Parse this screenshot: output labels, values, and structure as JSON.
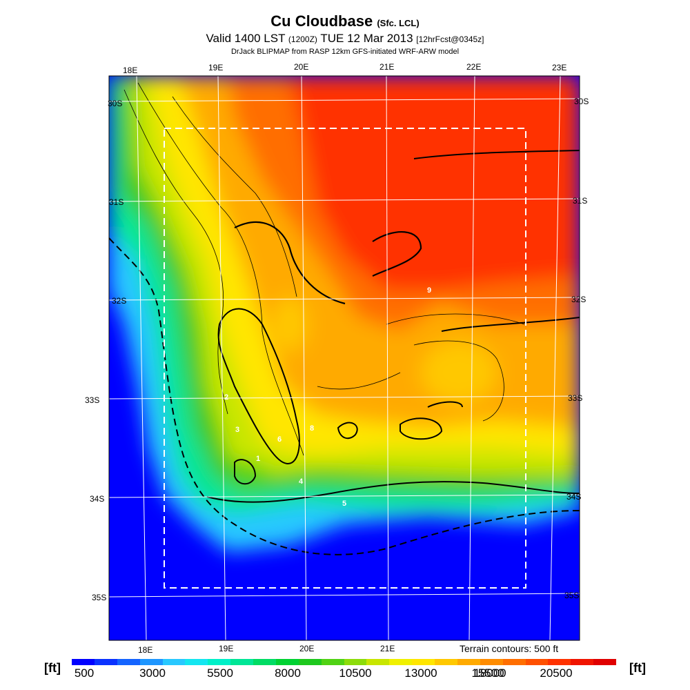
{
  "header": {
    "title": "Cu Cloudbase",
    "title_sub": "(Sfc. LCL)",
    "valid_main": "Valid 1400 LST",
    "valid_utc": "(1200Z)",
    "valid_date": "TUE 12 Mar 2013",
    "valid_fcst": "[12hrFcst@0345z]",
    "model": "DrJack BLIPMAP from RASP 12km GFS-initiated WRF-ARW model"
  },
  "map": {
    "lon_labels": [
      "18E",
      "19E",
      "20E",
      "21E",
      "22E",
      "23E"
    ],
    "lat_labels": [
      "30S",
      "31S",
      "32S",
      "33S",
      "34S",
      "35S"
    ],
    "contour_labels": [
      "9",
      "2",
      "3",
      "6",
      "8",
      "1",
      "4",
      "5"
    ],
    "terrain_note": "Terrain contours: 500 ft"
  },
  "colorbar": {
    "unit": "[ft]",
    "ticks": [
      "500",
      "3000",
      "5500",
      "8000",
      "10500",
      "13000",
      "15500",
      "18000",
      "20500"
    ],
    "colors": [
      "#0000ff",
      "#0a32ff",
      "#1464ff",
      "#1e96ff",
      "#28c8ff",
      "#14e6f0",
      "#00f0c8",
      "#00e696",
      "#00dc64",
      "#00d232",
      "#1ec81e",
      "#50d214",
      "#8cdc0a",
      "#c8e600",
      "#f0f000",
      "#ffe600",
      "#ffc800",
      "#ffaa00",
      "#ff8c00",
      "#ff6e00",
      "#ff5000",
      "#ff3200",
      "#f01400",
      "#e00000"
    ]
  }
}
